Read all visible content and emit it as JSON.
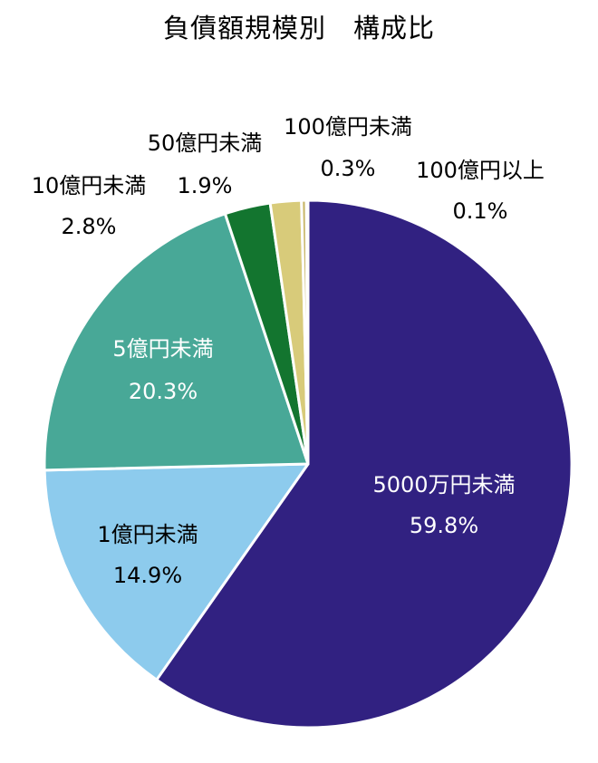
{
  "chart_data": {
    "type": "pie",
    "title": "負債額規模別　構成比",
    "categories": [
      "5000万円未満",
      "1億円未満",
      "5億円未満",
      "10億円未満",
      "50億円未満",
      "100億円未満",
      "100億円以上"
    ],
    "values": [
      59.8,
      14.9,
      20.3,
      2.8,
      1.9,
      0.3,
      0.1
    ],
    "value_labels": [
      "59.8%",
      "14.9%",
      "20.3%",
      "2.8%",
      "1.9%",
      "0.3%",
      "0.1%"
    ],
    "colors": [
      "#312181",
      "#8dcbed",
      "#48a897",
      "#13752f",
      "#d8cb7a",
      "#c9b86b",
      "#e2d79a"
    ],
    "label_colors": [
      "#ffffff",
      "#000000",
      "#ffffff",
      "#000000",
      "#000000",
      "#000000",
      "#000000"
    ],
    "label_placement": [
      "inside",
      "inside",
      "inside",
      "outside",
      "outside",
      "outside",
      "outside"
    ],
    "start": "12 o'clock",
    "direction": "clockwise"
  }
}
